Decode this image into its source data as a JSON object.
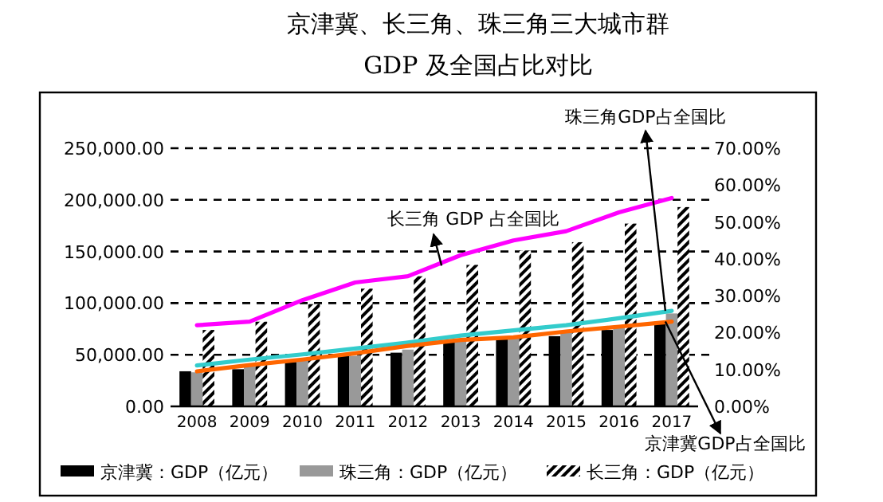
{
  "chart_data": {
    "type": "bar",
    "title": "京津冀、长三角、珠三角三大城市群",
    "subtitle": "GDP 及全国占比对比",
    "categories": [
      "2008",
      "2009",
      "2010",
      "2011",
      "2012",
      "2013",
      "2014",
      "2015",
      "2016",
      "2017"
    ],
    "series": [
      {
        "name": "京津冀：GDP（亿元）",
        "color": "#000000",
        "values": [
          34000,
          36000,
          43000,
          49000,
          52000,
          62000,
          65000,
          68000,
          74000,
          82000
        ]
      },
      {
        "name": "珠三角：GDP（亿元）",
        "color": "#999999",
        "values": [
          33000,
          40000,
          45000,
          49000,
          55000,
          64000,
          66000,
          72000,
          76000,
          90000
        ]
      },
      {
        "name": "长三角：GDP（亿元）",
        "color": "#000000",
        "values": [
          74000,
          82000,
          99000,
          114000,
          126000,
          137000,
          151000,
          159000,
          177000,
          193000
        ]
      },
      {
        "name": "长三角 GDP 占全国比",
        "type": "line",
        "axis": "y2",
        "color": "#ff00ff",
        "values": [
          22.0,
          23.0,
          28.8,
          33.6,
          35.3,
          41.0,
          45.0,
          47.5,
          52.6,
          56.5
        ]
      },
      {
        "name": "珠三角GDP占全国比",
        "type": "line",
        "axis": "y2",
        "color": "#33cccc",
        "values": [
          11.1,
          12.7,
          14.1,
          15.7,
          17.3,
          19.2,
          20.6,
          22.0,
          23.9,
          25.9
        ]
      },
      {
        "name": "京津冀GDP占全国比",
        "type": "line",
        "axis": "y2",
        "color": "#ff6600",
        "values": [
          9.5,
          11.2,
          12.7,
          14.4,
          16.4,
          18.0,
          18.7,
          20.3,
          21.6,
          23.0
        ]
      }
    ],
    "ylim": [
      0,
      250000
    ],
    "yticks": [
      {
        "value": 0,
        "label": "0.00"
      },
      {
        "value": 50000,
        "label": "50,000.00"
      },
      {
        "value": 100000,
        "label": "100,000.00"
      },
      {
        "value": 150000,
        "label": "150,000.00"
      },
      {
        "value": 200000,
        "label": "200,000.00"
      },
      {
        "value": 250000,
        "label": "250,000.00"
      }
    ],
    "y2lim": [
      0,
      70
    ],
    "y2ticks": [
      {
        "value": 0,
        "label": "0.00%"
      },
      {
        "value": 10,
        "label": "10.00%"
      },
      {
        "value": 20,
        "label": "20.00%"
      },
      {
        "value": 30,
        "label": "30.00%"
      },
      {
        "value": 40,
        "label": "40.00%"
      },
      {
        "value": 50,
        "label": "50.00%"
      },
      {
        "value": 60,
        "label": "60.00%"
      },
      {
        "value": 70,
        "label": "70.00%"
      }
    ],
    "grid": "y",
    "legend": "bottom",
    "marker": "none"
  }
}
